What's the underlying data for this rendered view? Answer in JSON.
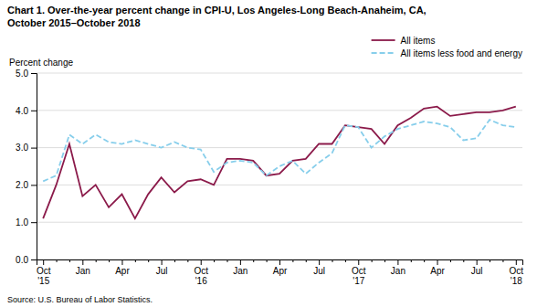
{
  "chart_data": {
    "type": "line",
    "title": "Chart 1. Over-the-year percent change in CPI-U, Los Angeles-Long Beach-Anaheim, CA,",
    "subtitle": "October 2015–October 2018",
    "y_label": "Percent change",
    "annotations": [
      "Source: U.S. Bureau of Labor Statistics."
    ],
    "categories": [
      "Oct\n'15",
      null,
      null,
      "Jan",
      null,
      null,
      "Apr",
      null,
      null,
      "Jul",
      null,
      null,
      "Oct\n'16",
      null,
      null,
      "Jan",
      null,
      null,
      "Apr",
      null,
      null,
      "Jul",
      null,
      null,
      "Oct\n'17",
      null,
      null,
      "Jan",
      null,
      null,
      "Apr",
      null,
      null,
      "Jul",
      null,
      null,
      "Oct\n'18"
    ],
    "series": [
      {
        "name": "All items",
        "color": "#8B1A4A",
        "line_style": "solid",
        "values": [
          1.1,
          2.0,
          3.1,
          1.7,
          2.0,
          1.4,
          1.75,
          1.1,
          1.75,
          2.2,
          1.8,
          2.1,
          2.15,
          2.0,
          2.7,
          2.7,
          2.65,
          2.25,
          2.3,
          2.65,
          2.7,
          3.1,
          3.1,
          3.6,
          3.55,
          3.5,
          3.1,
          3.6,
          3.8,
          4.05,
          4.1,
          3.85,
          3.9,
          3.95,
          3.95,
          4.0,
          4.1
        ]
      },
      {
        "name": "All items less food and energy",
        "color": "#87CEEB",
        "line_style": "dashed",
        "values": [
          2.1,
          2.25,
          3.35,
          3.1,
          3.35,
          3.15,
          3.1,
          3.2,
          3.1,
          3.0,
          3.15,
          3.0,
          2.95,
          2.35,
          2.6,
          2.65,
          2.6,
          2.25,
          2.5,
          2.65,
          2.3,
          2.6,
          2.85,
          3.6,
          3.55,
          3.0,
          3.3,
          3.5,
          3.6,
          3.7,
          3.65,
          3.55,
          3.2,
          3.25,
          3.75,
          3.6,
          3.55
        ]
      }
    ],
    "ylim": [
      0,
      5
    ],
    "yticks": [
      {
        "value": 0,
        "label": "0.0"
      },
      {
        "value": 1,
        "label": "1.0"
      },
      {
        "value": 2,
        "label": "2.0"
      },
      {
        "value": 3,
        "label": "3.0"
      },
      {
        "value": 4,
        "label": "4.0"
      },
      {
        "value": 5,
        "label": "5.0"
      }
    ],
    "grid": true,
    "legend": "upper right"
  }
}
